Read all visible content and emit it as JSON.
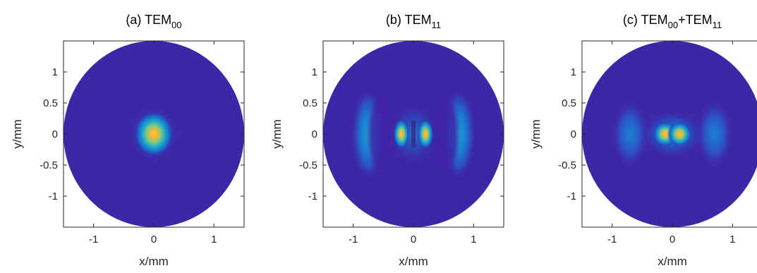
{
  "colors": {
    "background": "#3e26a8",
    "low": "#352a87",
    "mid_blue": "#0f5cdd",
    "cyan": "#1aa5d1",
    "green": "#7fc97f",
    "peak": "#f9c932",
    "axis": "#262626"
  },
  "chart_data": [
    {
      "type": "heatmap",
      "title": "(a) TEM00",
      "title_main": "(a) TEM",
      "title_sub": "00",
      "xlabel": "x/mm",
      "ylabel": "y/mm",
      "xlim": [
        -1.5,
        1.5
      ],
      "ylim": [
        -1.5,
        1.5
      ],
      "xticks": [
        -1,
        0,
        1
      ],
      "xtick_labels": [
        "-1",
        "0",
        "1"
      ],
      "yticks": [
        1,
        0.5,
        0,
        -0.5,
        -1
      ],
      "ytick_labels": [
        "1",
        "0.5",
        "0",
        "-0.5",
        "-1"
      ],
      "aperture_radius_mm": 1.5,
      "mode": "TEM00",
      "peaks": [
        {
          "x": 0,
          "y": 0,
          "intensity": 1.0
        }
      ],
      "grid": false
    },
    {
      "type": "heatmap",
      "title": "(b) TEM11",
      "title_main": "(b) TEM",
      "title_sub": "11",
      "xlabel": "x/mm",
      "ylabel": "y/mm",
      "xlim": [
        -1.5,
        1.5
      ],
      "ylim": [
        -1.5,
        1.5
      ],
      "xticks": [
        -1,
        0,
        1
      ],
      "xtick_labels": [
        "-1",
        "0",
        "1"
      ],
      "yticks": [
        1,
        0.5,
        0,
        -0.5,
        -1
      ],
      "ytick_labels": [
        "1",
        "0.5",
        "0",
        "-0.5",
        "-1"
      ],
      "aperture_radius_mm": 1.5,
      "mode": "TEM11",
      "peaks": [
        {
          "x": -0.2,
          "y": 0,
          "intensity": 1.0
        },
        {
          "x": 0.2,
          "y": 0,
          "intensity": 1.0
        },
        {
          "x": -0.75,
          "y": 0,
          "intensity": 0.45
        },
        {
          "x": 0.75,
          "y": 0,
          "intensity": 0.45
        }
      ],
      "grid": false
    },
    {
      "type": "heatmap",
      "title": "(c) TEM00+TEM11",
      "title_main": "(c) TEM",
      "title_sub": "00",
      "title_plus": "+TEM",
      "title_sub2": "11",
      "xlabel": "x/mm",
      "ylabel": "y/mm",
      "xlim": [
        -1.5,
        1.5
      ],
      "ylim": [
        -1.5,
        1.5
      ],
      "xticks": [
        -1,
        0,
        1
      ],
      "xtick_labels": [
        "-1",
        "0",
        "1"
      ],
      "yticks": [
        1,
        0.5,
        0,
        -0.5,
        -1
      ],
      "ytick_labels": [
        "1",
        "0.5",
        "0",
        "-0.5",
        "-1"
      ],
      "aperture_radius_mm": 1.5,
      "mode": "TEM00+TEM11",
      "peaks": [
        {
          "x": -0.12,
          "y": 0,
          "intensity": 1.0
        },
        {
          "x": 0.12,
          "y": 0,
          "intensity": 1.0
        },
        {
          "x": -0.7,
          "y": 0,
          "intensity": 0.3
        },
        {
          "x": 0.7,
          "y": 0,
          "intensity": 0.3
        }
      ],
      "grid": false
    }
  ]
}
